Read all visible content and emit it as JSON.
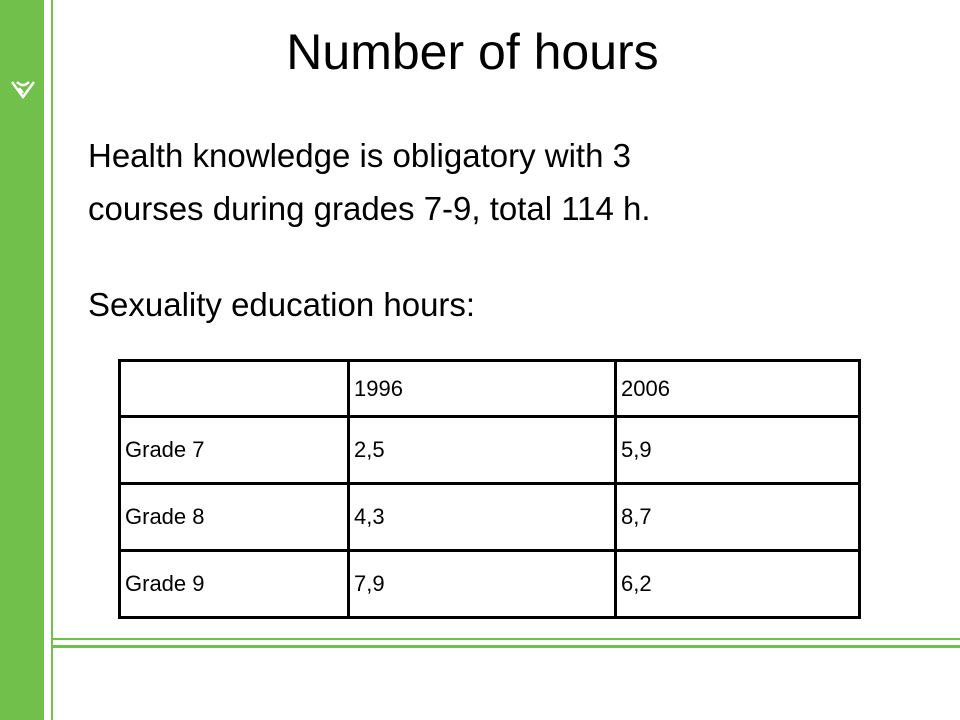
{
  "title": "Number of hours",
  "body": {
    "lines": [
      "Health knowledge is obligatory with 3",
      "courses during grades 7-9, total 114 h."
    ],
    "subheading": "Sexuality education hours:"
  },
  "table": {
    "columns": [
      "1996",
      "2006"
    ],
    "rows": [
      {
        "label": "Grade 7",
        "cells": [
          "2,5",
          "5,9"
        ]
      },
      {
        "label": "Grade 8",
        "cells": [
          "4,3",
          "8,7"
        ]
      },
      {
        "label": "Grade 9",
        "cells": [
          "7,9",
          "6,2"
        ]
      }
    ]
  }
}
